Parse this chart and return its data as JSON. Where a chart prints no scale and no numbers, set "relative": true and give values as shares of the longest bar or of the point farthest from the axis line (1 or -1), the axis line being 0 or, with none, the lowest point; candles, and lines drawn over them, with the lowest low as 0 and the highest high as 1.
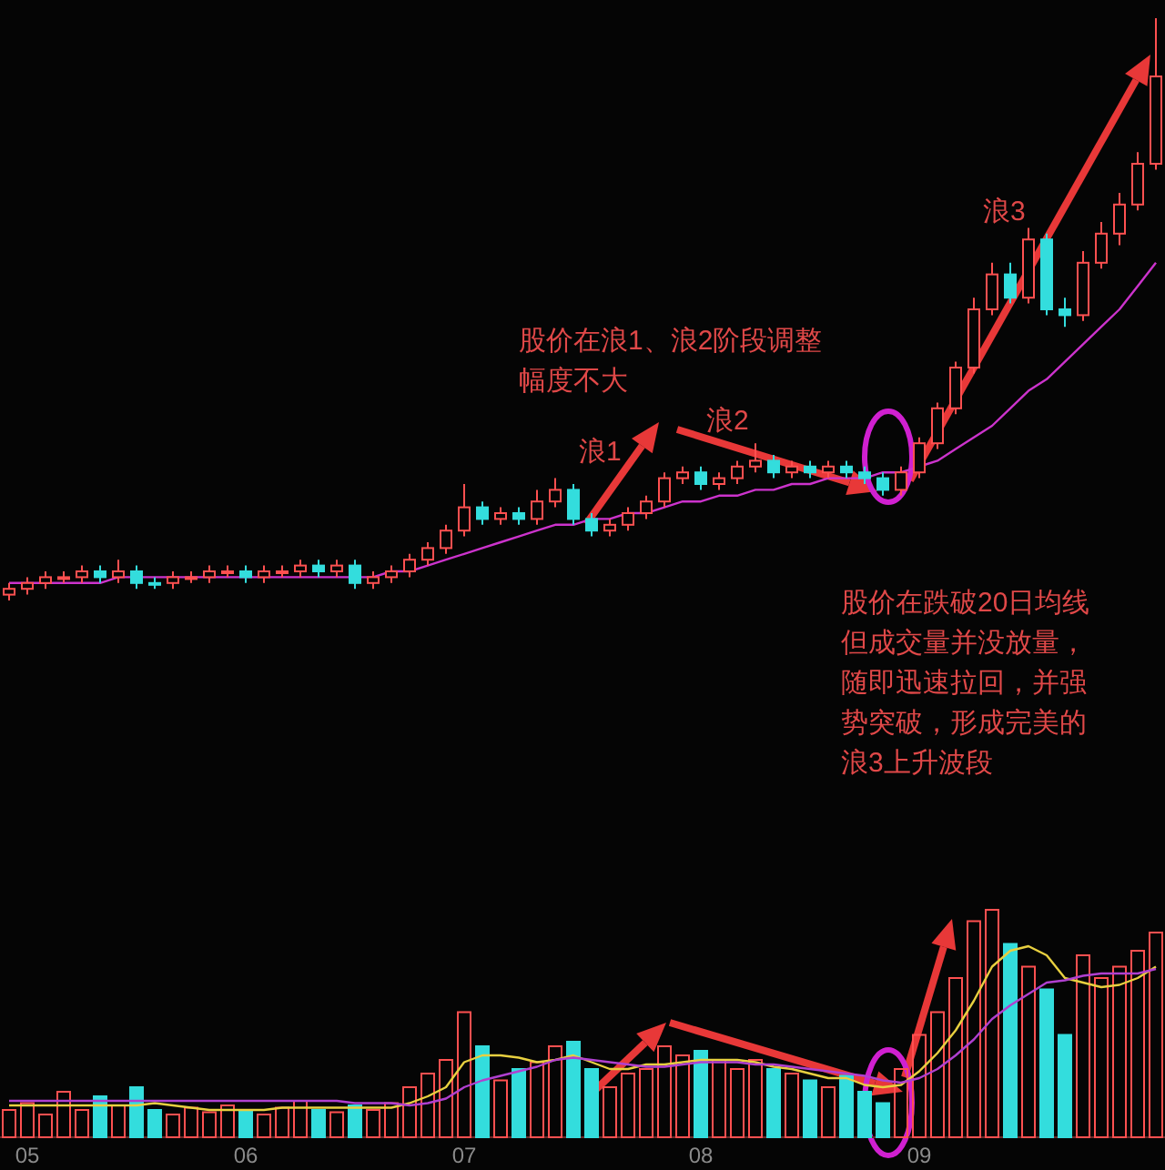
{
  "chart_data": [
    {
      "type": "candlestick",
      "relative": true,
      "categories": [
        null,
        null,
        null,
        null,
        null,
        null,
        null,
        null,
        null,
        null,
        null,
        null,
        null,
        null,
        null,
        null,
        null,
        null,
        null,
        null,
        null,
        null,
        null,
        null,
        null,
        null,
        null,
        null,
        null,
        null,
        null,
        null,
        null,
        null,
        null,
        null,
        null,
        null,
        null,
        null,
        null,
        null,
        null,
        null,
        null,
        null,
        null,
        null,
        null,
        null,
        null,
        null,
        null,
        null,
        null,
        null,
        null,
        null,
        null,
        null,
        null,
        null,
        null,
        null
      ],
      "ohlc": [
        [
          0.01,
          0.03,
          0.0,
          0.02
        ],
        [
          0.02,
          0.04,
          0.01,
          0.03
        ],
        [
          0.03,
          0.05,
          0.02,
          0.04
        ],
        [
          0.04,
          0.05,
          0.03,
          0.04
        ],
        [
          0.04,
          0.06,
          0.03,
          0.05
        ],
        [
          0.05,
          0.06,
          0.03,
          0.04
        ],
        [
          0.04,
          0.07,
          0.03,
          0.05
        ],
        [
          0.05,
          0.06,
          0.02,
          0.03
        ],
        [
          0.03,
          0.04,
          0.02,
          0.03
        ],
        [
          0.03,
          0.05,
          0.02,
          0.04
        ],
        [
          0.04,
          0.05,
          0.03,
          0.04
        ],
        [
          0.04,
          0.06,
          0.03,
          0.05
        ],
        [
          0.05,
          0.06,
          0.04,
          0.05
        ],
        [
          0.05,
          0.06,
          0.03,
          0.04
        ],
        [
          0.04,
          0.06,
          0.03,
          0.05
        ],
        [
          0.05,
          0.06,
          0.04,
          0.05
        ],
        [
          0.05,
          0.07,
          0.04,
          0.06
        ],
        [
          0.06,
          0.07,
          0.04,
          0.05
        ],
        [
          0.05,
          0.07,
          0.04,
          0.06
        ],
        [
          0.06,
          0.07,
          0.02,
          0.03
        ],
        [
          0.03,
          0.05,
          0.02,
          0.04
        ],
        [
          0.04,
          0.06,
          0.03,
          0.05
        ],
        [
          0.05,
          0.08,
          0.04,
          0.07
        ],
        [
          0.07,
          0.1,
          0.06,
          0.09
        ],
        [
          0.09,
          0.13,
          0.08,
          0.12
        ],
        [
          0.12,
          0.2,
          0.11,
          0.16
        ],
        [
          0.16,
          0.17,
          0.13,
          0.14
        ],
        [
          0.14,
          0.16,
          0.13,
          0.15
        ],
        [
          0.15,
          0.16,
          0.13,
          0.14
        ],
        [
          0.14,
          0.19,
          0.13,
          0.17
        ],
        [
          0.17,
          0.21,
          0.16,
          0.19
        ],
        [
          0.19,
          0.2,
          0.13,
          0.14
        ],
        [
          0.14,
          0.15,
          0.11,
          0.12
        ],
        [
          0.12,
          0.14,
          0.11,
          0.13
        ],
        [
          0.13,
          0.16,
          0.12,
          0.15
        ],
        [
          0.15,
          0.18,
          0.14,
          0.17
        ],
        [
          0.17,
          0.22,
          0.16,
          0.21
        ],
        [
          0.21,
          0.23,
          0.2,
          0.22
        ],
        [
          0.22,
          0.23,
          0.19,
          0.2
        ],
        [
          0.2,
          0.22,
          0.19,
          0.21
        ],
        [
          0.21,
          0.24,
          0.2,
          0.23
        ],
        [
          0.23,
          0.27,
          0.22,
          0.24
        ],
        [
          0.24,
          0.25,
          0.21,
          0.22
        ],
        [
          0.22,
          0.24,
          0.21,
          0.23
        ],
        [
          0.23,
          0.24,
          0.21,
          0.22
        ],
        [
          0.22,
          0.24,
          0.21,
          0.23
        ],
        [
          0.23,
          0.24,
          0.21,
          0.22
        ],
        [
          0.22,
          0.23,
          0.2,
          0.21
        ],
        [
          0.21,
          0.22,
          0.18,
          0.19
        ],
        [
          0.19,
          0.23,
          0.18,
          0.22
        ],
        [
          0.22,
          0.28,
          0.21,
          0.27
        ],
        [
          0.27,
          0.34,
          0.26,
          0.33
        ],
        [
          0.33,
          0.41,
          0.32,
          0.4
        ],
        [
          0.4,
          0.52,
          0.39,
          0.5
        ],
        [
          0.5,
          0.58,
          0.49,
          0.56
        ],
        [
          0.56,
          0.58,
          0.51,
          0.52
        ],
        [
          0.52,
          0.64,
          0.51,
          0.62
        ],
        [
          0.62,
          0.63,
          0.49,
          0.5
        ],
        [
          0.5,
          0.52,
          0.47,
          0.49
        ],
        [
          0.49,
          0.6,
          0.48,
          0.58
        ],
        [
          0.58,
          0.65,
          0.57,
          0.63
        ],
        [
          0.63,
          0.7,
          0.61,
          0.68
        ],
        [
          0.68,
          0.77,
          0.67,
          0.75
        ],
        [
          0.75,
          1.0,
          0.74,
          0.9
        ]
      ],
      "colors": [
        "#ff5050",
        "#ff5050",
        "#ff5050",
        "#ff5050",
        "#ff5050",
        "#33dddd",
        "#ff5050",
        "#33dddd",
        "#33dddd",
        "#ff5050",
        "#ff5050",
        "#ff5050",
        "#ff5050",
        "#33dddd",
        "#ff5050",
        "#ff5050",
        "#ff5050",
        "#33dddd",
        "#ff5050",
        "#33dddd",
        "#ff5050",
        "#ff5050",
        "#ff5050",
        "#ff5050",
        "#ff5050",
        "#ff5050",
        "#33dddd",
        "#ff5050",
        "#33dddd",
        "#ff5050",
        "#ff5050",
        "#33dddd",
        "#33dddd",
        "#ff5050",
        "#ff5050",
        "#ff5050",
        "#ff5050",
        "#ff5050",
        "#33dddd",
        "#ff5050",
        "#ff5050",
        "#ff5050",
        "#33dddd",
        "#ff5050",
        "#33dddd",
        "#ff5050",
        "#33dddd",
        "#33dddd",
        "#33dddd",
        "#ff5050",
        "#ff5050",
        "#ff5050",
        "#ff5050",
        "#ff5050",
        "#ff5050",
        "#33dddd",
        "#ff5050",
        "#33dddd",
        "#33dddd",
        "#ff5050",
        "#ff5050",
        "#ff5050",
        "#ff5050",
        "#ff5050"
      ],
      "series": [
        {
          "type": "line",
          "color": "#cc33cc",
          "values": [
            0.03,
            0.03,
            0.03,
            0.03,
            0.03,
            0.03,
            0.04,
            0.04,
            0.04,
            0.04,
            0.04,
            0.04,
            0.04,
            0.04,
            0.04,
            0.04,
            0.04,
            0.04,
            0.04,
            0.04,
            0.04,
            0.05,
            0.05,
            0.06,
            0.07,
            0.08,
            0.09,
            0.1,
            0.11,
            0.12,
            0.13,
            0.13,
            0.14,
            0.14,
            0.15,
            0.15,
            0.16,
            0.17,
            0.17,
            0.18,
            0.18,
            0.19,
            0.19,
            0.2,
            0.2,
            0.21,
            0.21,
            0.21,
            0.22,
            0.22,
            0.23,
            0.24,
            0.26,
            0.28,
            0.3,
            0.33,
            0.36,
            0.38,
            0.41,
            0.44,
            0.47,
            0.5,
            0.54,
            0.58
          ]
        }
      ],
      "annotations": [
        "浪1",
        "浪2",
        "浪3",
        "股价在浪1、浪2阶段调整",
        "幅度不大",
        "股价在跌破20日均线",
        "但成交量并没放量，",
        "随即迅速拉回，并强",
        "势突破，形成完美的",
        "浪3上升波段"
      ]
    },
    {
      "type": "bar",
      "relative": true,
      "categories": [
        null,
        "05",
        null,
        null,
        null,
        null,
        null,
        null,
        null,
        null,
        null,
        null,
        null,
        "06",
        null,
        null,
        null,
        null,
        null,
        null,
        null,
        null,
        null,
        null,
        null,
        "07",
        null,
        null,
        null,
        null,
        null,
        null,
        null,
        null,
        null,
        null,
        null,
        null,
        "08",
        null,
        null,
        null,
        null,
        null,
        null,
        null,
        null,
        null,
        null,
        null,
        "09",
        null,
        null,
        null,
        null,
        null,
        null,
        null,
        null,
        null,
        null,
        null,
        null,
        null
      ],
      "values": [
        0.12,
        0.15,
        0.1,
        0.2,
        0.12,
        0.18,
        0.14,
        0.22,
        0.12,
        0.1,
        0.13,
        0.11,
        0.14,
        0.12,
        0.1,
        0.13,
        0.16,
        0.12,
        0.11,
        0.14,
        0.12,
        0.15,
        0.22,
        0.28,
        0.34,
        0.55,
        0.4,
        0.25,
        0.3,
        0.33,
        0.4,
        0.42,
        0.3,
        0.22,
        0.28,
        0.3,
        0.4,
        0.36,
        0.38,
        0.34,
        0.3,
        0.34,
        0.3,
        0.28,
        0.25,
        0.22,
        0.27,
        0.2,
        0.15,
        0.3,
        0.45,
        0.55,
        0.7,
        0.95,
        1.0,
        0.85,
        0.75,
        0.65,
        0.45,
        0.8,
        0.7,
        0.75,
        0.82,
        0.9
      ],
      "colors": [
        "#ff5050",
        "#ff5050",
        "#ff5050",
        "#ff5050",
        "#ff5050",
        "#33dddd",
        "#ff5050",
        "#33dddd",
        "#33dddd",
        "#ff5050",
        "#ff5050",
        "#ff5050",
        "#ff5050",
        "#33dddd",
        "#ff5050",
        "#ff5050",
        "#ff5050",
        "#33dddd",
        "#ff5050",
        "#33dddd",
        "#ff5050",
        "#ff5050",
        "#ff5050",
        "#ff5050",
        "#ff5050",
        "#ff5050",
        "#33dddd",
        "#ff5050",
        "#33dddd",
        "#ff5050",
        "#ff5050",
        "#33dddd",
        "#33dddd",
        "#ff5050",
        "#ff5050",
        "#ff5050",
        "#ff5050",
        "#ff5050",
        "#33dddd",
        "#ff5050",
        "#ff5050",
        "#ff5050",
        "#33dddd",
        "#ff5050",
        "#33dddd",
        "#ff5050",
        "#33dddd",
        "#33dddd",
        "#33dddd",
        "#ff5050",
        "#ff5050",
        "#ff5050",
        "#ff5050",
        "#ff5050",
        "#ff5050",
        "#33dddd",
        "#ff5050",
        "#33dddd",
        "#33dddd",
        "#ff5050",
        "#ff5050",
        "#ff5050",
        "#ff5050",
        "#ff5050"
      ],
      "series": [
        {
          "type": "line",
          "color": "#e8d040",
          "values": [
            0.14,
            0.14,
            0.14,
            0.14,
            0.14,
            0.14,
            0.14,
            0.14,
            0.15,
            0.14,
            0.13,
            0.12,
            0.12,
            0.12,
            0.12,
            0.13,
            0.13,
            0.13,
            0.13,
            0.13,
            0.13,
            0.13,
            0.15,
            0.18,
            0.22,
            0.33,
            0.36,
            0.36,
            0.35,
            0.33,
            0.34,
            0.36,
            0.33,
            0.3,
            0.3,
            0.32,
            0.32,
            0.33,
            0.34,
            0.34,
            0.34,
            0.33,
            0.31,
            0.3,
            0.28,
            0.26,
            0.26,
            0.23,
            0.22,
            0.23,
            0.29,
            0.37,
            0.47,
            0.6,
            0.75,
            0.82,
            0.84,
            0.8,
            0.7,
            0.68,
            0.66,
            0.67,
            0.7,
            0.75
          ]
        },
        {
          "type": "line",
          "color": "#b040d0",
          "values": [
            0.16,
            0.16,
            0.16,
            0.16,
            0.16,
            0.16,
            0.16,
            0.16,
            0.16,
            0.16,
            0.16,
            0.16,
            0.16,
            0.16,
            0.16,
            0.16,
            0.16,
            0.16,
            0.16,
            0.15,
            0.15,
            0.15,
            0.14,
            0.15,
            0.17,
            0.22,
            0.25,
            0.27,
            0.29,
            0.31,
            0.34,
            0.35,
            0.34,
            0.33,
            0.32,
            0.31,
            0.31,
            0.32,
            0.33,
            0.33,
            0.33,
            0.32,
            0.32,
            0.31,
            0.3,
            0.29,
            0.28,
            0.27,
            0.25,
            0.24,
            0.26,
            0.3,
            0.36,
            0.43,
            0.52,
            0.58,
            0.63,
            0.68,
            0.69,
            0.71,
            0.72,
            0.72,
            0.72,
            0.74
          ]
        }
      ]
    }
  ]
}
